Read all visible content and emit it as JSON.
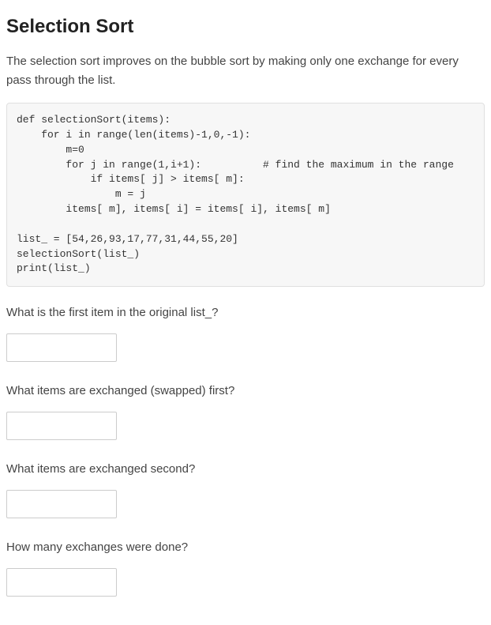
{
  "title": "Selection Sort",
  "intro": "The selection sort improves on the bubble sort by making only one exchange for every pass through the list.",
  "code": {
    "text": "def selectionSort(items):\n    for i in range(len(items)-1,0,-1):\n        m=0\n        for j in range(1,i+1):          # find the maximum in the range\n            if items[ j] > items[ m]:\n                m = j\n        items[ m], items[ i] = items[ i], items[ m]\n\nlist_ = [54,26,93,17,77,31,44,55,20]\nselectionSort(list_)\nprint(list_)",
    "font_family": "Consolas, Menlo, Monaco, monospace",
    "font_size": 13,
    "background_color": "#f7f7f7",
    "border_color": "#e0e0e0",
    "text_color": "#333333"
  },
  "questions": [
    {
      "label": "What is the first item in the original list_?",
      "value": ""
    },
    {
      "label": "What items are exchanged (swapped) first?",
      "value": ""
    },
    {
      "label": "What items are exchanged second?",
      "value": ""
    },
    {
      "label": "How many exchanges were done?",
      "value": ""
    }
  ],
  "styles": {
    "heading_color": "#222222",
    "heading_fontsize": 24,
    "body_text_color": "#444444",
    "body_fontsize": 15,
    "input_width": 140,
    "input_height": 36,
    "input_border_color": "#cccccc",
    "page_background": "#ffffff"
  }
}
